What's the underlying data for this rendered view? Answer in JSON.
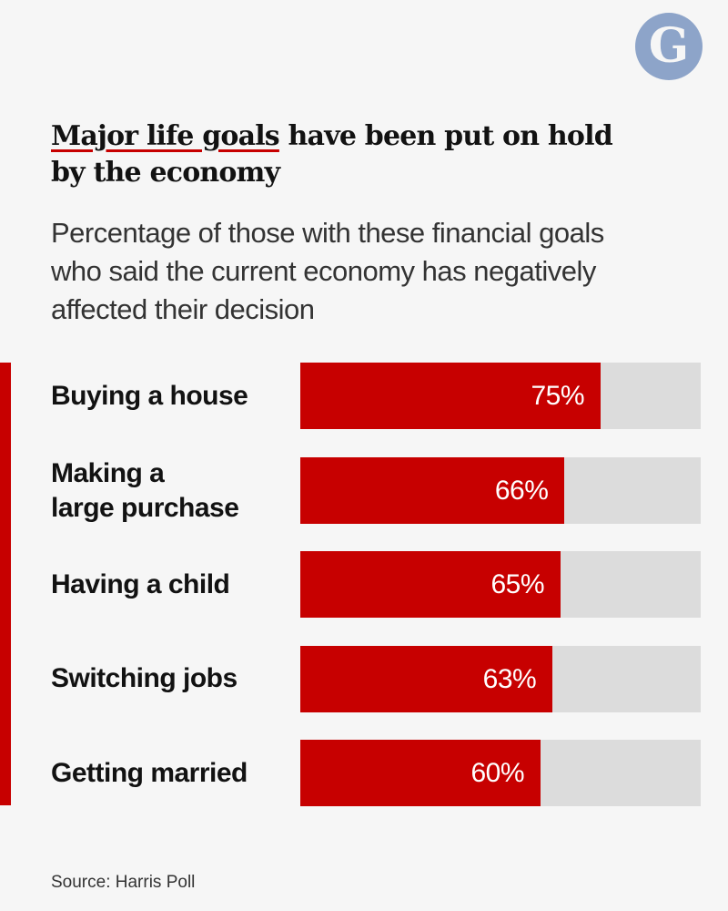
{
  "header": {
    "title_highlight": "Major life goals",
    "title_rest": " have been put on hold by the economy",
    "subtitle": "Percentage of those with these financial goals who said the current economy has negatively affected their decision"
  },
  "logo": {
    "text": "G",
    "color": "#8da4c9"
  },
  "chart_data": {
    "type": "bar",
    "orientation": "horizontal",
    "categories": [
      "Buying a house",
      "Making a large purchase",
      "Having a child",
      "Switching jobs",
      "Getting married"
    ],
    "values": [
      75,
      66,
      65,
      63,
      60
    ],
    "value_labels": [
      "75%",
      "66%",
      "65%",
      "63%",
      "60%"
    ],
    "xlim": [
      0,
      100
    ],
    "unit": "%",
    "bar_color": "#c70000",
    "track_color": "#dcdcdc",
    "grid": false
  },
  "footer": {
    "source": "Source: Harris Poll"
  }
}
